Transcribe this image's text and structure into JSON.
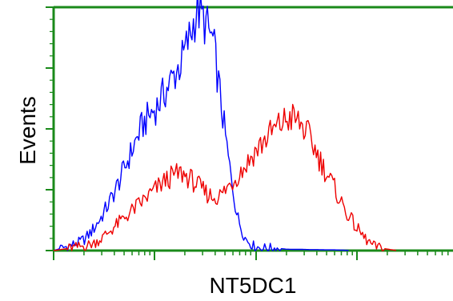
{
  "chart_data": {
    "type": "line",
    "title": "",
    "xlabel": "NT5DC1",
    "ylabel": "Events",
    "x_scale": "log",
    "xlim": [
      0,
      100
    ],
    "ylim": [
      0,
      100
    ],
    "grid": false,
    "legend": "none",
    "colors": {
      "axis": "#1a8a1a",
      "blue": "#0000ff",
      "red": "#ee0000"
    },
    "series": [
      {
        "color": "#0000ff",
        "x": [
          0,
          2,
          4,
          6,
          8,
          10,
          12,
          14,
          16,
          18,
          20,
          22,
          24,
          26,
          28,
          30,
          32,
          34,
          36,
          38,
          40,
          42,
          44,
          46,
          48,
          50,
          52,
          54,
          56,
          58,
          60,
          62,
          64,
          66,
          68,
          70,
          72,
          74
        ],
        "y": [
          0,
          1,
          2,
          3,
          5,
          9,
          14,
          20,
          27,
          35,
          43,
          51,
          56,
          60,
          66,
          72,
          78,
          88,
          100,
          94,
          86,
          60,
          35,
          14,
          5,
          2,
          1,
          1,
          1,
          0.6,
          0.5,
          0.5,
          0.4,
          0.4,
          0.3,
          0.3,
          0.2,
          0
        ]
      },
      {
        "color": "#ee0000",
        "x": [
          0,
          2,
          4,
          6,
          8,
          10,
          12,
          14,
          16,
          18,
          20,
          22,
          24,
          26,
          28,
          30,
          32,
          34,
          36,
          38,
          40,
          42,
          44,
          46,
          48,
          50,
          52,
          54,
          56,
          58,
          60,
          62,
          64,
          66,
          68,
          70,
          72,
          74,
          76,
          78,
          80,
          82,
          84,
          86
        ],
        "y": [
          0,
          0.5,
          1,
          1.5,
          2,
          3,
          5,
          8,
          11,
          14,
          17,
          20,
          23,
          26,
          29,
          31,
          32,
          30,
          27,
          24,
          22,
          23,
          27,
          31,
          35,
          40,
          44,
          48,
          51,
          54,
          55,
          52,
          47,
          40,
          33,
          27,
          20,
          14,
          9,
          5,
          2,
          1,
          0.5,
          0
        ]
      }
    ]
  }
}
